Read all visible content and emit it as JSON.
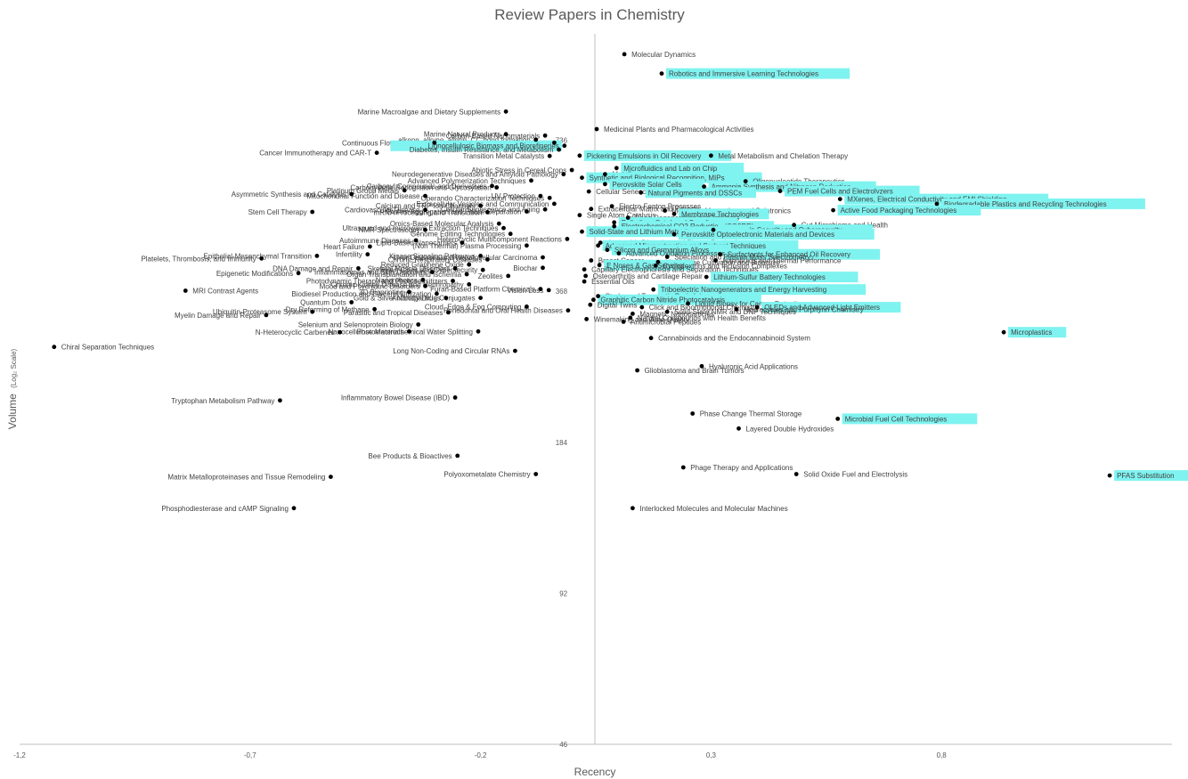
{
  "chart_data": {
    "type": "scatter",
    "title": "Review Papers in Chemistry",
    "xlabel": "Recency",
    "ylabel": "Volume",
    "ylabel_suffix": "(Log₂ Scale)",
    "xlim": [
      -1.2,
      1.3
    ],
    "x_ticks": [
      "-1,2",
      "-0,7",
      "-0,2",
      "0,3",
      "0,8"
    ],
    "x_tick_values": [
      -1.2,
      -0.7,
      -0.2,
      0.3,
      0.8
    ],
    "y_scale": "log2",
    "ylim": [
      46,
      1200
    ],
    "y_tick_labels": [
      "46",
      "92",
      "184",
      "368",
      "736"
    ],
    "y_tick_values": [
      46,
      92,
      184,
      368,
      736
    ],
    "highlight_color": "#7ff3f0",
    "point_color": "#000000",
    "points": [
      {
        "label": "Molecular Dynamics",
        "x": 0.112,
        "y": 1093,
        "hl": false
      },
      {
        "label": "Robotics and Immersive Learning Technologies",
        "x": 0.193,
        "y": 1000,
        "hl": true
      },
      {
        "label": "Marine Macroalgae and Dietary Supplements",
        "x": -0.145,
        "y": 840,
        "hl": false
      },
      {
        "label": "Medicinal Plants and Pharmacological Activities",
        "x": 0.052,
        "y": 775,
        "hl": false
      },
      {
        "label": "Marine Natural Products",
        "x": -0.145,
        "y": 757,
        "hl": false
      },
      {
        "label": "Carbon-Based Nanomaterials",
        "x": -0.06,
        "y": 752,
        "hl": false
      },
      {
        "label": "alkene, alkyne, allene, CC bond formation",
        "x": -0.08,
        "y": 738,
        "hl": false
      },
      {
        "label": "X-ray and Ultrafast Laser Techniques",
        "x": -0.04,
        "y": 728,
        "hl": false
      },
      {
        "label": "Continuous Flow Chemistry",
        "x": -0.3,
        "y": 728,
        "hl": false
      },
      {
        "label": "Lignocellulosic Biomass and Biorefineries",
        "x": -0.018,
        "y": 718,
        "hl": true
      },
      {
        "label": "Diabetes, Insulin Resistance, and Metabolism",
        "x": -0.03,
        "y": 705,
        "hl": false
      },
      {
        "label": "Cancer Immunotherapy and CAR-T",
        "x": -0.425,
        "y": 695,
        "hl": false
      },
      {
        "label": "Transition Metal Catalysts",
        "x": -0.05,
        "y": 685,
        "hl": false
      },
      {
        "label": "Pickering Emulsions in Oil Recovery",
        "x": 0.015,
        "y": 686,
        "hl": true
      },
      {
        "label": "Metal Metabolism and Chelation Therapy",
        "x": 0.3,
        "y": 686,
        "hl": false
      },
      {
        "label": "Microfluidics and Lab on Chip",
        "x": 0.095,
        "y": 648,
        "hl": true
      },
      {
        "label": "Abiotic Stress in Cereal Crops",
        "x": -0.002,
        "y": 642,
        "hl": false
      },
      {
        "label": "Neurodegenerative Diseases and Amyloid Pathology",
        "x": -0.02,
        "y": 630,
        "hl": false
      },
      {
        "label": "Metallurgy",
        "x": 0.07,
        "y": 630,
        "hl": false
      },
      {
        "label": "Advanced Polymerization Techniques",
        "x": -0.09,
        "y": 612,
        "hl": false
      },
      {
        "label": "Synthetic and Biological Recognition, MIPs",
        "x": 0.02,
        "y": 620,
        "hl": true
      },
      {
        "label": "Oligonucleotide Therapeutics",
        "x": 0.375,
        "y": 610,
        "hl": false
      },
      {
        "label": "Carbonyl Compounds and Derivatives",
        "x": -0.175,
        "y": 597,
        "hl": false
      },
      {
        "label": "Perovskite Solar Cells",
        "x": 0.07,
        "y": 602,
        "hl": true
      },
      {
        "label": "Ammonia Synthesis and Nitrogen Reduction",
        "x": 0.285,
        "y": 595,
        "hl": true
      },
      {
        "label": "Platinum Group Metals",
        "x": -0.365,
        "y": 585,
        "hl": false
      },
      {
        "label": "Carbohydrate Recognition and Glycosylation",
        "x": -0.165,
        "y": 593,
        "hl": false
      },
      {
        "label": "PEM Fuel Cells and Electrolyzers",
        "x": 0.45,
        "y": 583,
        "hl": true
      },
      {
        "label": "Cellular Senescence and Aging",
        "x": 0.035,
        "y": 582,
        "hl": false
      },
      {
        "label": "Natural Pigments and DSSCs",
        "x": 0.148,
        "y": 579,
        "hl": true
      },
      {
        "label": "Asymmetric Synthesis and Catalysis",
        "x": -0.48,
        "y": 575,
        "hl": false
      },
      {
        "label": "UV Protection",
        "x": -0.07,
        "y": 570,
        "hl": false
      },
      {
        "label": "Operando Characterization Techniques",
        "x": -0.05,
        "y": 565,
        "hl": false
      },
      {
        "label": "Mitochondrial Function and Disease",
        "x": -0.32,
        "y": 570,
        "hl": false
      },
      {
        "label": "MXenes, Electrical Conductivity and EMI Shielding",
        "x": 0.58,
        "y": 562,
        "hl": true
      },
      {
        "label": "Calcium and TRP Ion Channels",
        "x": -0.2,
        "y": 545,
        "hl": false
      },
      {
        "label": "Extracellular Vesicles and Communication",
        "x": -0.04,
        "y": 550,
        "hl": false
      },
      {
        "label": "Biodegradable Plastics and Recycling Technologies",
        "x": 0.79,
        "y": 550,
        "hl": true
      },
      {
        "label": "Electro-Fenton Processes",
        "x": 0.085,
        "y": 544,
        "hl": false
      },
      {
        "label": "Cardiovascular Disease",
        "x": -0.32,
        "y": 535,
        "hl": false
      },
      {
        "label": "Extracellular Matrix and Fibrosis",
        "x": 0.04,
        "y": 537,
        "hl": false
      },
      {
        "label": "Molecular Magnetism and Spintronics",
        "x": 0.2,
        "y": 533,
        "hl": false
      },
      {
        "label": "Active Food Packaging Technologies",
        "x": 0.565,
        "y": 534,
        "hl": true
      },
      {
        "label": "Cellular Senescence and Aging 2",
        "x": -0.06,
        "y": 536,
        "hl": false
      },
      {
        "label": "Stem Cell Therapy",
        "x": -0.565,
        "y": 530,
        "hl": false
      },
      {
        "label": "Protein Aggregation and Phase Separation",
        "x": -0.1,
        "y": 531,
        "hl": false
      },
      {
        "label": "mRNA Processing and Translation",
        "x": -0.185,
        "y": 529,
        "hl": false
      },
      {
        "label": "Membrane Technologies",
        "x": 0.22,
        "y": 525,
        "hl": true
      },
      {
        "label": "Single Atom Catalysis",
        "x": 0.015,
        "y": 522,
        "hl": false
      },
      {
        "label": "Bone Regeneration and Implants",
        "x": 0.12,
        "y": 516,
        "hl": false
      },
      {
        "label": "Palladium-Catalyzed Coupling",
        "x": 0.09,
        "y": 505,
        "hl": true
      },
      {
        "label": "Omics-Based Molecular Analysis",
        "x": -0.16,
        "y": 502,
        "hl": false
      },
      {
        "label": "Gut Microbiome and Health",
        "x": 0.48,
        "y": 499,
        "hl": false
      },
      {
        "label": "Electrochemical CO2 Reduction (CO2RR)",
        "x": 0.09,
        "y": 496,
        "hl": true
      },
      {
        "label": "NMR Spectroscopy",
        "x": -0.32,
        "y": 488,
        "hl": false
      },
      {
        "label": "Ultrasound and microwave Extraction Techniques",
        "x": -0.15,
        "y": 492,
        "hl": false
      },
      {
        "label": "Blockchain Security and Cybersecurity",
        "x": 0.305,
        "y": 488,
        "hl": true
      },
      {
        "label": "Genome Editing Technologies",
        "x": -0.135,
        "y": 479,
        "hl": false
      },
      {
        "label": "Solid-State and Lithium Metal Batteries",
        "x": 0.02,
        "y": 484,
        "hl": true
      },
      {
        "label": "Perovskite Optoelectronic Materials and Devices",
        "x": 0.22,
        "y": 478,
        "hl": true
      },
      {
        "label": "Heterocyclic Multicomponent Reactions",
        "x": -0.012,
        "y": 468,
        "hl": false
      },
      {
        "label": "Autoimmune Diseases",
        "x": -0.34,
        "y": 465,
        "hl": false
      },
      {
        "label": "Anaerobic Digestion and Biogas Production",
        "x": 0.06,
        "y": 460,
        "hl": false
      },
      {
        "label": "Lipid-Based Nanocarriers",
        "x": -0.24,
        "y": 460,
        "hl": false
      },
      {
        "label": "Advanced Microextraction and Sorbent Techniques",
        "x": 0.055,
        "y": 454,
        "hl": true
      },
      {
        "label": "Heart Failure",
        "x": -0.44,
        "y": 452,
        "hl": false
      },
      {
        "label": "(Non Thermal) Plasma Processing",
        "x": -0.1,
        "y": 454,
        "hl": false
      },
      {
        "label": "Silicon and Germanium Alloys",
        "x": 0.075,
        "y": 445,
        "hl": true
      },
      {
        "label": "Advanced Oxidation Processes (AOPs)",
        "x": 0.1,
        "y": 438,
        "hl": false
      },
      {
        "label": "Surfactants for Enhanced Oil Recovery",
        "x": 0.32,
        "y": 436,
        "hl": true
      },
      {
        "label": "Infertility",
        "x": -0.445,
        "y": 436,
        "hl": false
      },
      {
        "label": "Epithelial-Mesenchymal Transition",
        "x": -0.555,
        "y": 433,
        "hl": false
      },
      {
        "label": "Kinase Signaling Pathways",
        "x": -0.2,
        "y": 433,
        "hl": false
      },
      {
        "label": "Speciation and Plasma Mass Spectrometry",
        "x": 0.205,
        "y": 431,
        "hl": false
      },
      {
        "label": "Liver Diseases and Hepatocellular Carcinoma",
        "x": -0.065,
        "y": 430,
        "hl": false
      },
      {
        "label": "Platelets, Thrombosis, and Immunity",
        "x": -0.675,
        "y": 428,
        "hl": false
      },
      {
        "label": "Chronic Respiratory Diseases",
        "x": -0.185,
        "y": 426,
        "hl": false
      },
      {
        "label": "Breast Cancer",
        "x": 0.04,
        "y": 424,
        "hl": false
      },
      {
        "label": "Nanofluids and Thermal Performance",
        "x": 0.31,
        "y": 424,
        "hl": false
      },
      {
        "label": "Microalgae Cultivation and Bioactive",
        "x": 0.185,
        "y": 421,
        "hl": false
      },
      {
        "label": "Reduced Graphene Oxide",
        "x": -0.225,
        "y": 416,
        "hl": false
      },
      {
        "label": "E Noses & Gas Sensing",
        "x": 0.058,
        "y": 415,
        "hl": true
      },
      {
        "label": "Cyclodextrins and Inclusion Complexes",
        "x": 0.18,
        "y": 414,
        "hl": false
      },
      {
        "label": "DNA Damage and Repair",
        "x": -0.465,
        "y": 409,
        "hl": false
      },
      {
        "label": "Biochar",
        "x": -0.065,
        "y": 410,
        "hl": false
      },
      {
        "label": "Skeletal Muscle Disorders",
        "x": -0.255,
        "y": 409,
        "hl": false
      },
      {
        "label": "Capillary Electrophoresis and Separation Techniques",
        "x": 0.025,
        "y": 407,
        "hl": false
      },
      {
        "label": "Smart Cities and Cybersecurity",
        "x": -0.195,
        "y": 406,
        "hl": false
      },
      {
        "label": "Inflammasomes and Skin Disorders",
        "x": -0.305,
        "y": 402,
        "hl": false
      },
      {
        "label": "Epigenetic Modifications",
        "x": -0.595,
        "y": 400,
        "hl": false
      },
      {
        "label": "Organ Transplantation and Ischemia",
        "x": -0.23,
        "y": 398,
        "hl": false
      },
      {
        "label": "Zeolites",
        "x": -0.14,
        "y": 395,
        "hl": false
      },
      {
        "label": "Osteoarthritis and Cartilage Repair",
        "x": 0.028,
        "y": 395,
        "hl": false
      },
      {
        "label": "Lithium-Sulfur Battery Technologies",
        "x": 0.29,
        "y": 393,
        "hl": true
      },
      {
        "label": "Nanorobotics",
        "x": -0.325,
        "y": 388,
        "hl": false
      },
      {
        "label": "Photodynamic Therapy and Photosensitizers",
        "x": -0.26,
        "y": 386,
        "hl": false
      },
      {
        "label": "Essential Oils",
        "x": 0.025,
        "y": 385,
        "hl": false
      },
      {
        "label": "Chronic Kidney Disease and Nephropathy",
        "x": -0.225,
        "y": 380,
        "hl": false
      },
      {
        "label": "Mood and Psychiatric Disorders",
        "x": -0.32,
        "y": 377,
        "hl": false
      },
      {
        "label": "Furan-Based Platform Chemicals",
        "x": -0.07,
        "y": 372,
        "hl": false
      },
      {
        "label": "Vision Loss",
        "x": -0.052,
        "y": 370,
        "hl": false
      },
      {
        "label": "Triboelectric Nanogenerators and Energy Harvesting",
        "x": 0.175,
        "y": 371,
        "hl": true
      },
      {
        "label": "MRI Contrast Agents",
        "x": -0.84,
        "y": 369,
        "hl": false
      },
      {
        "label": "3D Bioprinting",
        "x": -0.355,
        "y": 367,
        "hl": false
      },
      {
        "label": "Biodiesel Production and Glycerol Utilization",
        "x": -0.295,
        "y": 364,
        "hl": false
      },
      {
        "label": "Stroke and Traumatic Brain Injury",
        "x": 0.055,
        "y": 360,
        "hl": false
      },
      {
        "label": "Gold & Silver Nanoparticles",
        "x": -0.275,
        "y": 357,
        "hl": false
      },
      {
        "label": "Antibody-Drug Conjugates",
        "x": -0.2,
        "y": 357,
        "hl": false
      },
      {
        "label": "Graphitic Carbon Nitride Photocatalysis",
        "x": 0.045,
        "y": 354,
        "hl": true
      },
      {
        "label": "Quantum Dots",
        "x": -0.48,
        "y": 350,
        "hl": false
      },
      {
        "label": "Liquid Biopsy for Cancer Detection",
        "x": 0.25,
        "y": 348,
        "hl": false
      },
      {
        "label": "Digital Twins",
        "x": 0.038,
        "y": 346,
        "hl": false
      },
      {
        "label": "Cloud, Edge & Fog Computing",
        "x": -0.1,
        "y": 343,
        "hl": false
      },
      {
        "label": "Click and Bioorthogonal Chemistry",
        "x": 0.15,
        "y": 342,
        "hl": false
      },
      {
        "label": "OLEDs and Advanced Light Emitters",
        "x": 0.4,
        "y": 342,
        "hl": true
      },
      {
        "label": "Macrocycles and Porphyrin Chemistry",
        "x": 0.355,
        "y": 339,
        "hl": false
      },
      {
        "label": "Dry Reforming of Methane",
        "x": -0.43,
        "y": 339,
        "hl": false
      },
      {
        "label": "Periodontal and Oral Health Diseases",
        "x": -0.01,
        "y": 337,
        "hl": false
      },
      {
        "label": "Ubiquitin-Proteasome System",
        "x": -0.565,
        "y": 335,
        "hl": false
      },
      {
        "label": "Parasitic and Tropical Diseases",
        "x": -0.27,
        "y": 334,
        "hl": false
      },
      {
        "label": "Solid-State NMR and DNP Techniques",
        "x": 0.205,
        "y": 335,
        "hl": false
      },
      {
        "label": "Magnetic Nanoparticles",
        "x": 0.13,
        "y": 332,
        "hl": false
      },
      {
        "label": "Myelin Damage and Repair",
        "x": -0.665,
        "y": 330,
        "hl": false
      },
      {
        "label": "Natural Compounds with Health Benefits",
        "x": 0.125,
        "y": 326,
        "hl": false
      },
      {
        "label": "Winemaking and Wine Quality",
        "x": 0.03,
        "y": 324,
        "hl": false
      },
      {
        "label": "Selenium and Selenoprotein Biology",
        "x": -0.335,
        "y": 316,
        "hl": false
      },
      {
        "label": "Antimicrobial Peptides",
        "x": 0.11,
        "y": 320,
        "hl": false
      },
      {
        "label": "N-Heterocyclic Carbenes",
        "x": -0.505,
        "y": 305,
        "hl": false
      },
      {
        "label": "Nanocellulose Materials",
        "x": -0.355,
        "y": 306,
        "hl": false
      },
      {
        "label": "Photoelectrochemical Water Splitting",
        "x": -0.205,
        "y": 306,
        "hl": false
      },
      {
        "label": "Microplastics",
        "x": 0.935,
        "y": 305,
        "hl": true
      },
      {
        "label": "Cannabinoids and the Endocannabinoid System",
        "x": 0.17,
        "y": 297,
        "hl": false
      },
      {
        "label": "Chiral Separation Techniques",
        "x": -1.125,
        "y": 285,
        "hl": false
      },
      {
        "label": "Long Non-Coding and Circular RNAs",
        "x": -0.125,
        "y": 280,
        "hl": false
      },
      {
        "label": "Hyaluronic Acid Applications",
        "x": 0.28,
        "y": 261,
        "hl": false
      },
      {
        "label": "Glioblastoma and Brain Tumors",
        "x": 0.14,
        "y": 256,
        "hl": false
      },
      {
        "label": "Tryptophan Metabolism Pathway",
        "x": -0.635,
        "y": 223,
        "hl": false
      },
      {
        "label": "Inflammatory Bowel Disease (IBD)",
        "x": -0.255,
        "y": 226,
        "hl": false
      },
      {
        "label": "Phase Change Thermal Storage",
        "x": 0.26,
        "y": 210,
        "hl": false
      },
      {
        "label": "Microbial Fuel Cell Technologies",
        "x": 0.575,
        "y": 205,
        "hl": true
      },
      {
        "label": "Layered Double Hydroxides",
        "x": 0.36,
        "y": 196,
        "hl": false
      },
      {
        "label": "Bee Products & Bioactives",
        "x": -0.25,
        "y": 173,
        "hl": false
      },
      {
        "label": "Phage Therapy and Applications",
        "x": 0.24,
        "y": 164,
        "hl": false
      },
      {
        "label": "Polyoxometalate Chemistry",
        "x": -0.08,
        "y": 159,
        "hl": false
      },
      {
        "label": "Solid Oxide Fuel and Electrolysis",
        "x": 0.485,
        "y": 159,
        "hl": false
      },
      {
        "label": "PFAS Substitution",
        "x": 1.165,
        "y": 158,
        "hl": true
      },
      {
        "label": "Matrix Metalloproteinases and Tissue Remodeling",
        "x": -0.525,
        "y": 157,
        "hl": false
      },
      {
        "label": "Phosphodiesterase and cAMP Signaling",
        "x": -0.605,
        "y": 136,
        "hl": false
      },
      {
        "label": "Interlocked Molecules and Molecular Machines",
        "x": 0.13,
        "y": 136,
        "hl": false
      }
    ],
    "grid": false,
    "legend": "none"
  }
}
